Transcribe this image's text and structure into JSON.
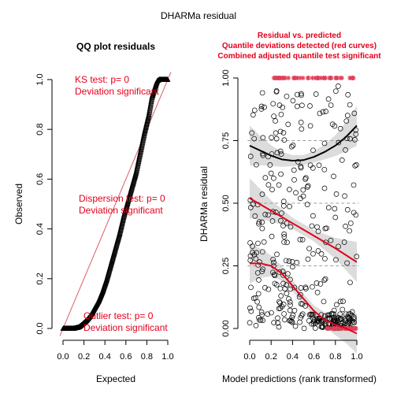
{
  "page_title": "DHARMa residual",
  "chart_data": [
    {
      "type": "scatter",
      "title": "QQ plot residuals",
      "xlabel": "Expected",
      "ylabel": "Observed",
      "xlim": [
        0,
        1
      ],
      "ylim": [
        0,
        1
      ],
      "xticks": [
        "0.0",
        "0.2",
        "0.4",
        "0.6",
        "0.8",
        "1.0"
      ],
      "yticks": [
        "0.0",
        "0.2",
        "0.4",
        "0.6",
        "0.8",
        "1.0"
      ],
      "reference_line": {
        "from": [
          0,
          0
        ],
        "to": [
          1,
          1
        ],
        "color": "#d95f6b"
      },
      "point_marker": "triangle",
      "qq_curve": [
        [
          0.0,
          0.0
        ],
        [
          0.05,
          0.0
        ],
        [
          0.1,
          0.0
        ],
        [
          0.15,
          0.005
        ],
        [
          0.18,
          0.015
        ],
        [
          0.22,
          0.03
        ],
        [
          0.26,
          0.05
        ],
        [
          0.3,
          0.08
        ],
        [
          0.34,
          0.11
        ],
        [
          0.38,
          0.15
        ],
        [
          0.42,
          0.2
        ],
        [
          0.46,
          0.26
        ],
        [
          0.5,
          0.32
        ],
        [
          0.54,
          0.38
        ],
        [
          0.58,
          0.45
        ],
        [
          0.62,
          0.51
        ],
        [
          0.66,
          0.57
        ],
        [
          0.7,
          0.63
        ],
        [
          0.74,
          0.71
        ],
        [
          0.78,
          0.79
        ],
        [
          0.82,
          0.86
        ],
        [
          0.85,
          0.93
        ],
        [
          0.88,
          0.97
        ],
        [
          0.9,
          0.995
        ],
        [
          0.92,
          1.0
        ],
        [
          1.0,
          1.0
        ]
      ],
      "annotations": [
        {
          "lines": [
            "KS test: p= 0",
            "Deviation  significant"
          ]
        },
        {
          "lines": [
            "Dispersion test: p= 0",
            "Deviation  significant"
          ]
        },
        {
          "lines": [
            "Outlier test: p= 0",
            "Deviation  significant"
          ]
        }
      ]
    },
    {
      "type": "scatter",
      "title_lines": [
        "Residual vs. predicted",
        "Quantile deviations detected (red curves)",
        "Combined adjusted quantile test significant"
      ],
      "xlabel": "Model predictions (rank transformed)",
      "ylabel": "DHARMa residual",
      "xlim": [
        0,
        1
      ],
      "ylim": [
        0,
        1
      ],
      "xticks": [
        "0.0",
        "0.2",
        "0.4",
        "0.6",
        "0.8",
        "1.0"
      ],
      "yticks": [
        "0.00",
        "0.25",
        "0.50",
        "0.75",
        "1.00"
      ],
      "reference_levels": [
        0.25,
        0.5,
        0.75
      ],
      "colors": {
        "fit_075": "#000000",
        "fit_red": "#e3001b",
        "band": "#d3d3d3",
        "outlier": "#e0405a",
        "points": "#000000"
      },
      "fit_curves": [
        {
          "quantile": 0.75,
          "points": [
            [
              0,
              0.73
            ],
            [
              0.1,
              0.71
            ],
            [
              0.2,
              0.69
            ],
            [
              0.3,
              0.675
            ],
            [
              0.4,
              0.67
            ],
            [
              0.5,
              0.672
            ],
            [
              0.6,
              0.685
            ],
            [
              0.7,
              0.705
            ],
            [
              0.8,
              0.73
            ],
            [
              0.9,
              0.765
            ],
            [
              1,
              0.81
            ]
          ]
        },
        {
          "quantile": 0.5,
          "points": [
            [
              0,
              0.52
            ],
            [
              0.2,
              0.47
            ],
            [
              0.4,
              0.42
            ],
            [
              0.6,
              0.37
            ],
            [
              0.8,
              0.32
            ],
            [
              1,
              0.265
            ]
          ]
        },
        {
          "quantile": 0.25,
          "points": [
            [
              0,
              0.26
            ],
            [
              0.1,
              0.26
            ],
            [
              0.2,
              0.25
            ],
            [
              0.3,
              0.22
            ],
            [
              0.4,
              0.17
            ],
            [
              0.5,
              0.12
            ],
            [
              0.6,
              0.07
            ],
            [
              0.7,
              0.035
            ],
            [
              0.8,
              0.015
            ],
            [
              0.9,
              0.0
            ],
            [
              1,
              -0.02
            ]
          ]
        }
      ]
    }
  ]
}
